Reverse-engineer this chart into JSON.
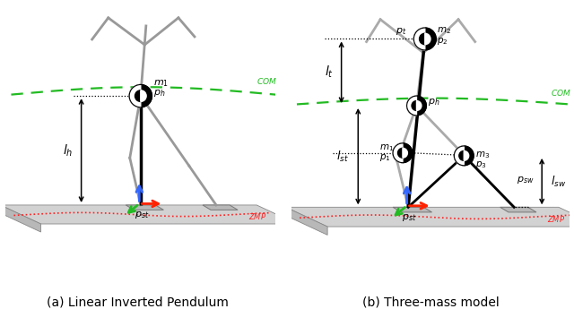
{
  "fig_width": 6.4,
  "fig_height": 3.45,
  "dpi": 100,
  "bg_color": "#ffffff",
  "gc": "#999999",
  "gc2": "#aaaaaa",
  "ground_top": "#d0d0d0",
  "ground_side": "#b8b8b8",
  "foot_color": "#b0b0b0",
  "caption_left": "(a) Linear Inverted Pendulum",
  "caption_right": "(b) Three-mass model",
  "caption_fontsize": 10,
  "com_color": "#22bb22",
  "zmp_color": "#ff2222",
  "arrow_blue": "#3366ff",
  "arrow_red": "#ff2200",
  "arrow_green": "#22bb22"
}
